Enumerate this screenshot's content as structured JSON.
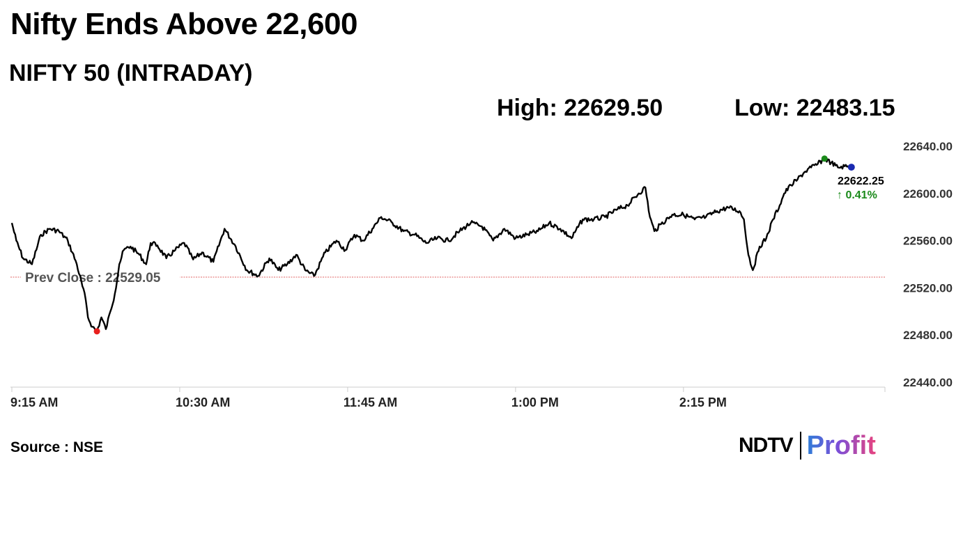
{
  "header": {
    "title": "Nifty Ends Above 22,600",
    "subtitle": "NIFTY 50 (INTRADAY)",
    "high_text": "High: 22629.50",
    "low_text": "Low: 22483.15"
  },
  "footer": {
    "source": "Source : NSE",
    "logo_ndtv": "NDTV",
    "logo_profit": "Profit"
  },
  "colors": {
    "line": "#000000",
    "prev_close_line": "#e06060",
    "low_marker": "#e8201e",
    "high_marker": "#1a8a1a",
    "last_marker": "#1a2ab0",
    "change_up": "#1a8a1a",
    "axis": "#cccccc"
  },
  "chart_data": {
    "type": "line",
    "title": "NIFTY 50 (INTRADAY)",
    "xlabel": "",
    "ylabel": "",
    "ylim": [
      22440,
      22640
    ],
    "y_ticks": [
      "22640.00",
      "22600.00",
      "22560.00",
      "22520.00",
      "22480.00",
      "22440.00"
    ],
    "x_ticks": [
      "9:15 AM",
      "10:30 AM",
      "11:45 AM",
      "1:00 PM",
      "2:15 PM"
    ],
    "grid": false,
    "prev_close": 22529.05,
    "prev_close_label": "Prev Close : 22529.05",
    "last_value": 22622.25,
    "last_value_label": "22622.25",
    "change_label": "↑ 0.41%",
    "low": 22483.15,
    "high": 22629.5,
    "series": [
      {
        "x": [
          "9:15",
          "9:17",
          "9:20",
          "9:24",
          "9:28",
          "9:32",
          "9:36",
          "9:40",
          "9:44",
          "9:48",
          "9:49",
          "9:51",
          "9:53",
          "9:55",
          "9:57",
          "9:59",
          "10:01",
          "10:03",
          "10:05",
          "10:08",
          "10:12",
          "10:15",
          "10:17",
          "10:20",
          "10:24",
          "10:28",
          "10:32",
          "10:36",
          "10:40",
          "10:45",
          "10:50",
          "10:55",
          "11:00",
          "11:05",
          "11:10",
          "11:14",
          "11:18",
          "11:22",
          "11:26",
          "11:30",
          "11:35",
          "11:40",
          "11:44",
          "11:48",
          "11:52",
          "11:56",
          "12:00",
          "12:05",
          "12:10",
          "12:15",
          "12:20",
          "12:25",
          "12:30",
          "12:35",
          "12:40",
          "12:45",
          "12:50",
          "12:55",
          "13:00",
          "13:05",
          "13:10",
          "13:15",
          "13:20",
          "13:25",
          "13:30",
          "13:35",
          "13:40",
          "13:45",
          "13:50",
          "13:55",
          "13:58",
          "14:00",
          "14:02",
          "14:05",
          "14:10",
          "14:15",
          "14:20",
          "14:25",
          "14:30",
          "14:35",
          "14:40",
          "14:42",
          "14:44",
          "14:46",
          "14:49",
          "14:52",
          "14:55",
          "14:58",
          "15:00",
          "15:03",
          "15:06",
          "15:09",
          "15:12",
          "15:15",
          "15:18",
          "15:21",
          "15:24",
          "15:27",
          "15:30"
        ],
        "values": [
          22575,
          22560,
          22545,
          22540,
          22565,
          22570,
          22568,
          22560,
          22540,
          22510,
          22495,
          22487,
          22483.15,
          22495,
          22485,
          22500,
          22515,
          22540,
          22552,
          22555,
          22548,
          22540,
          22558,
          22556,
          22545,
          22552,
          22558,
          22544,
          22550,
          22542,
          22570,
          22555,
          22535,
          22530,
          22545,
          22535,
          22540,
          22548,
          22535,
          22530,
          22550,
          22560,
          22552,
          22565,
          22560,
          22570,
          22580,
          22575,
          22568,
          22565,
          22558,
          22562,
          22560,
          22568,
          22575,
          22572,
          22560,
          22570,
          22562,
          22565,
          22568,
          22575,
          22570,
          22562,
          22578,
          22578,
          22580,
          22586,
          22590,
          22600,
          22605,
          22580,
          22568,
          22574,
          22582,
          22582,
          22578,
          22580,
          22585,
          22588,
          22585,
          22578,
          22548,
          22535,
          22555,
          22562,
          22578,
          22590,
          22600,
          22607,
          22612,
          22618,
          22622,
          22625,
          22629.5,
          22626,
          22622,
          22623,
          22622.25
        ]
      }
    ]
  }
}
